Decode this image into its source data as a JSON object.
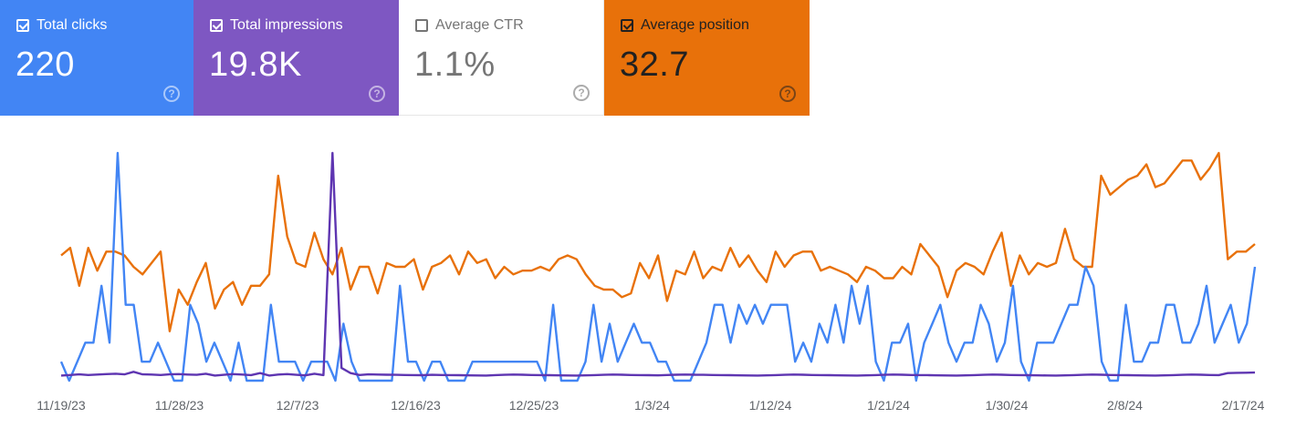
{
  "metrics": [
    {
      "label": "Total clicks",
      "value": "220",
      "checked": true,
      "color": "#4285f4"
    },
    {
      "label": "Total impressions",
      "value": "19.8K",
      "checked": true,
      "color": "#7e57c2"
    },
    {
      "label": "Average CTR",
      "value": "1.1%",
      "checked": false,
      "color": "#ffffff"
    },
    {
      "label": "Average position",
      "value": "32.7",
      "checked": true,
      "color": "#e8710a"
    }
  ],
  "help_glyph": "?",
  "chart_data": {
    "type": "line",
    "x_tick_labels": [
      "11/19/23",
      "11/28/23",
      "12/7/23",
      "12/16/23",
      "12/25/23",
      "1/3/24",
      "1/12/24",
      "1/21/24",
      "1/30/24",
      "2/8/24",
      "2/17/24"
    ],
    "x_range": [
      "11/19/23",
      "2/17/24"
    ],
    "grid": false,
    "series": [
      {
        "name": "Total clicks",
        "color": "#4285f4",
        "scale_max": 12,
        "values": [
          1,
          0,
          1,
          2,
          2,
          5,
          2,
          12,
          4,
          4,
          1,
          1,
          2,
          1,
          0,
          0,
          4,
          3,
          1,
          2,
          1,
          0,
          2,
          0,
          0,
          0,
          4,
          1,
          1,
          1,
          0,
          1,
          1,
          1,
          0,
          3,
          1,
          0,
          0,
          0,
          0,
          0,
          5,
          1,
          1,
          0,
          1,
          1,
          0,
          0,
          0,
          1,
          1,
          1,
          1,
          1,
          1,
          1,
          1,
          1,
          0,
          4,
          0,
          0,
          0,
          1,
          4,
          1,
          3,
          1,
          2,
          3,
          2,
          2,
          1,
          1,
          0,
          0,
          0,
          1,
          2,
          4,
          4,
          2,
          4,
          3,
          4,
          3,
          4,
          4,
          4,
          1,
          2,
          1,
          3,
          2,
          4,
          2,
          5,
          3,
          5,
          1,
          0,
          2,
          2,
          3,
          0,
          2,
          3,
          4,
          2,
          1,
          2,
          2,
          4,
          3,
          1,
          2,
          5,
          1,
          0,
          2,
          2,
          2,
          3,
          4,
          4,
          6,
          5,
          1,
          0,
          0,
          4,
          1,
          1,
          2,
          2,
          4,
          4,
          2,
          2,
          3,
          5,
          2,
          3,
          4,
          2,
          3,
          6
        ],
        "values_note": "daily"
      },
      {
        "name": "Total impressions",
        "color": "#5e35b1",
        "scale_max": 1800,
        "values": [
          40,
          45,
          50,
          45,
          48,
          52,
          55,
          50,
          70,
          50,
          48,
          45,
          50,
          52,
          48,
          46,
          55,
          40,
          46,
          52,
          48,
          44,
          60,
          40,
          48,
          52,
          46,
          42,
          55,
          44,
          1800,
          100,
          60,
          45,
          50,
          48,
          47,
          46,
          45,
          44,
          43,
          46,
          45,
          44,
          43,
          42,
          41,
          40,
          44,
          46,
          48,
          47,
          45,
          44,
          43,
          42,
          41,
          40,
          42,
          44,
          46,
          48,
          47,
          45,
          44,
          43,
          42,
          45,
          47,
          48,
          47,
          46,
          45,
          44,
          43,
          42,
          41,
          40,
          42,
          44,
          46,
          48,
          47,
          45,
          44,
          43,
          42,
          41,
          40,
          42,
          44,
          46,
          48,
          47,
          45,
          44,
          43,
          42,
          41,
          40,
          42,
          44,
          46,
          48,
          47,
          45,
          44,
          43,
          42,
          41,
          40,
          42,
          44,
          46,
          48,
          47,
          45,
          44,
          43,
          42,
          41,
          40,
          42,
          44,
          46,
          48,
          47,
          45,
          44,
          60,
          62,
          63,
          64
        ]
      },
      {
        "name": "Average position",
        "color": "#e8710a",
        "scale_max": 60,
        "values": [
          33,
          35,
          25,
          35,
          29,
          34,
          34,
          33,
          30,
          28,
          31,
          34,
          13,
          24,
          20,
          26,
          31,
          19,
          24,
          26,
          20,
          25,
          25,
          28,
          54,
          38,
          31,
          30,
          39,
          32,
          28,
          35,
          24,
          30,
          30,
          23,
          31,
          30,
          30,
          32,
          24,
          30,
          31,
          33,
          28,
          34,
          31,
          32,
          27,
          30,
          28,
          29,
          29,
          30,
          29,
          32,
          33,
          32,
          28,
          25,
          24,
          24,
          22,
          23,
          31,
          27,
          33,
          21,
          29,
          28,
          34,
          27,
          30,
          29,
          35,
          30,
          33,
          29,
          26,
          34,
          30,
          33,
          34,
          34,
          29,
          30,
          29,
          28,
          26,
          30,
          29,
          27,
          27,
          30,
          28,
          36,
          33,
          30,
          22,
          29,
          31,
          30,
          28,
          34,
          39,
          25,
          33,
          28,
          31,
          30,
          31,
          40,
          32,
          30,
          30,
          54,
          49,
          51,
          53,
          54,
          57,
          51,
          52,
          55,
          58,
          58,
          53,
          56,
          60,
          32,
          34,
          34,
          36
        ]
      }
    ]
  }
}
